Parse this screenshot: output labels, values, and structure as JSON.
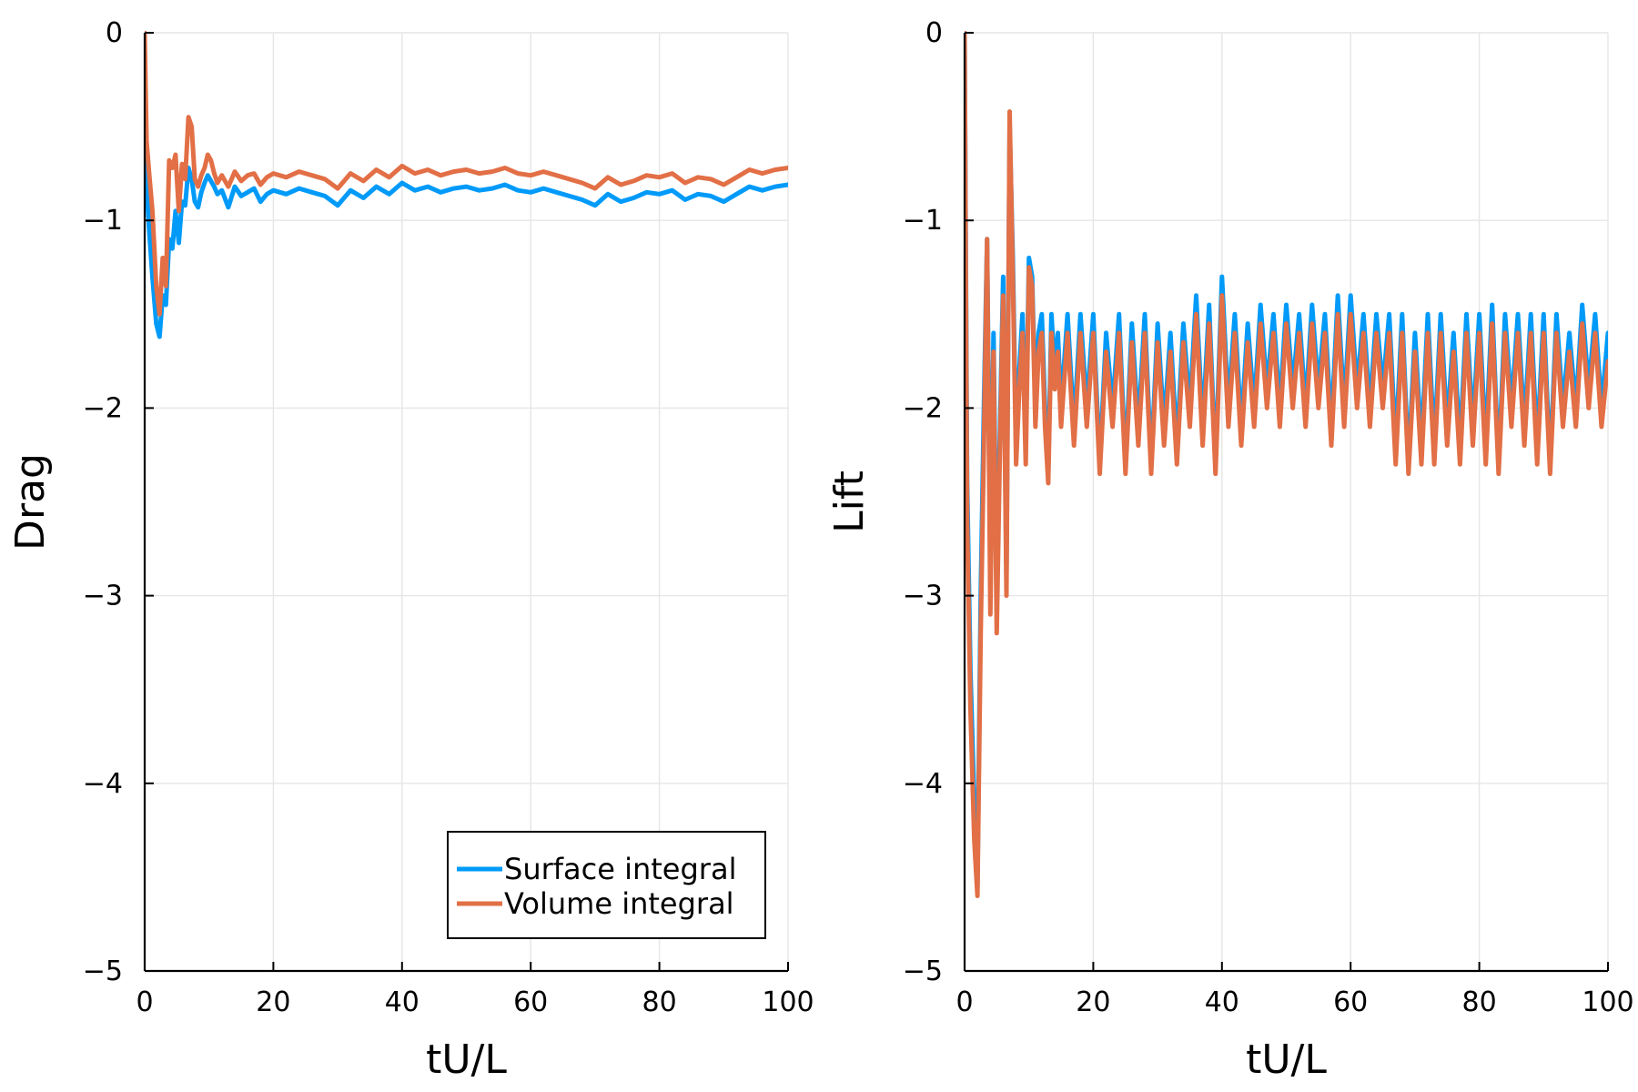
{
  "colors": {
    "surface": "#009AF9",
    "volume": "#E26F46",
    "grid": "#E6E6E6",
    "axis": "#000000"
  },
  "chart_data": [
    {
      "type": "line",
      "title": "",
      "xlabel": "tU/L",
      "ylabel": "Drag",
      "xlim": [
        0,
        100
      ],
      "ylim": [
        -5,
        0
      ],
      "xticks": [
        "0",
        "20",
        "40",
        "60",
        "80",
        "100"
      ],
      "yticks": [
        "0",
        "−1",
        "−2",
        "−3",
        "−4",
        "−5"
      ],
      "grid": true,
      "legend_position": "bottom-right",
      "legend": [
        "Surface integral",
        "Volume integral"
      ],
      "series": [
        {
          "name": "Surface integral",
          "color": "#009AF9",
          "x": [
            0,
            0.3,
            0.7,
            1.2,
            1.8,
            2.3,
            2.8,
            3.3,
            3.8,
            4.3,
            4.8,
            5.3,
            5.8,
            6.3,
            6.8,
            7.3,
            7.8,
            8.3,
            8.8,
            9.3,
            9.8,
            10.3,
            10.8,
            11.3,
            12,
            13,
            14,
            15,
            16,
            17,
            18,
            19,
            20,
            22,
            24,
            26,
            28,
            30,
            32,
            34,
            36,
            38,
            40,
            42,
            44,
            46,
            48,
            50,
            52,
            54,
            56,
            58,
            60,
            62,
            64,
            66,
            68,
            70,
            72,
            74,
            76,
            78,
            80,
            82,
            84,
            86,
            88,
            90,
            92,
            94,
            96,
            98,
            100
          ],
          "y": [
            -0.65,
            -0.82,
            -1.05,
            -1.3,
            -1.55,
            -1.62,
            -1.4,
            -1.45,
            -1.1,
            -1.15,
            -0.95,
            -1.12,
            -0.9,
            -0.92,
            -0.72,
            -0.78,
            -0.9,
            -0.93,
            -0.85,
            -0.8,
            -0.76,
            -0.79,
            -0.82,
            -0.86,
            -0.84,
            -0.93,
            -0.82,
            -0.87,
            -0.85,
            -0.83,
            -0.9,
            -0.86,
            -0.84,
            -0.86,
            -0.83,
            -0.85,
            -0.87,
            -0.92,
            -0.84,
            -0.88,
            -0.82,
            -0.86,
            -0.8,
            -0.84,
            -0.82,
            -0.85,
            -0.83,
            -0.82,
            -0.84,
            -0.83,
            -0.81,
            -0.84,
            -0.85,
            -0.83,
            -0.85,
            -0.87,
            -0.89,
            -0.92,
            -0.86,
            -0.9,
            -0.88,
            -0.85,
            -0.86,
            -0.84,
            -0.89,
            -0.86,
            -0.87,
            -0.9,
            -0.86,
            -0.82,
            -0.84,
            -0.82,
            -0.81
          ]
        },
        {
          "name": "Volume integral",
          "color": "#E26F46",
          "x": [
            0,
            0.3,
            0.7,
            1.2,
            1.8,
            2.3,
            2.8,
            3.3,
            3.8,
            4.3,
            4.8,
            5.3,
            5.8,
            6.3,
            6.8,
            7.3,
            7.8,
            8.3,
            8.8,
            9.3,
            9.8,
            10.3,
            10.8,
            11.3,
            12,
            13,
            14,
            15,
            16,
            17,
            18,
            19,
            20,
            22,
            24,
            26,
            28,
            30,
            32,
            34,
            36,
            38,
            40,
            42,
            44,
            46,
            48,
            50,
            52,
            54,
            56,
            58,
            60,
            62,
            64,
            66,
            68,
            70,
            72,
            74,
            76,
            78,
            80,
            82,
            84,
            86,
            88,
            90,
            92,
            94,
            96,
            98,
            100
          ],
          "y": [
            0,
            -0.58,
            -0.75,
            -0.95,
            -1.35,
            -1.5,
            -1.2,
            -1.35,
            -0.68,
            -0.72,
            -0.65,
            -0.95,
            -0.7,
            -0.78,
            -0.45,
            -0.5,
            -0.78,
            -0.82,
            -0.76,
            -0.72,
            -0.65,
            -0.68,
            -0.75,
            -0.8,
            -0.76,
            -0.82,
            -0.74,
            -0.79,
            -0.76,
            -0.75,
            -0.81,
            -0.77,
            -0.75,
            -0.77,
            -0.74,
            -0.76,
            -0.78,
            -0.83,
            -0.75,
            -0.79,
            -0.73,
            -0.77,
            -0.71,
            -0.75,
            -0.73,
            -0.76,
            -0.74,
            -0.73,
            -0.75,
            -0.74,
            -0.72,
            -0.75,
            -0.76,
            -0.74,
            -0.76,
            -0.78,
            -0.8,
            -0.83,
            -0.77,
            -0.81,
            -0.79,
            -0.76,
            -0.77,
            -0.75,
            -0.8,
            -0.77,
            -0.78,
            -0.81,
            -0.77,
            -0.73,
            -0.75,
            -0.73,
            -0.72
          ]
        }
      ]
    },
    {
      "type": "line",
      "title": "",
      "xlabel": "tU/L",
      "ylabel": "Lift",
      "xlim": [
        0,
        100
      ],
      "ylim": [
        -5,
        0
      ],
      "xticks": [
        "0",
        "20",
        "40",
        "60",
        "80",
        "100"
      ],
      "yticks": [
        "0",
        "−1",
        "−2",
        "−3",
        "−4",
        "−5"
      ],
      "grid": true,
      "series": [
        {
          "name": "Surface integral",
          "color": "#009AF9",
          "x": [
            0,
            0.4,
            0.9,
            1.5,
            2.0,
            2.5,
            3.0,
            3.5,
            4.0,
            4.5,
            5.0,
            5.5,
            6.0,
            6.5,
            7.0,
            7.5,
            8.0,
            8.5,
            9.0,
            9.5,
            10.0,
            10.5,
            11.0,
            11.5,
            12.0,
            12.5,
            13.0,
            13.5,
            14.0,
            14.5,
            15.0,
            16,
            17,
            18,
            19,
            20,
            21,
            22,
            23,
            24,
            25,
            26,
            27,
            28,
            29,
            30,
            31,
            32,
            33,
            34,
            35,
            36,
            37,
            38,
            39,
            40,
            41,
            42,
            43,
            44,
            45,
            46,
            47,
            48,
            49,
            50,
            51,
            52,
            53,
            54,
            55,
            56,
            57,
            58,
            59,
            60,
            61,
            62,
            63,
            64,
            65,
            66,
            67,
            68,
            69,
            70,
            71,
            72,
            73,
            74,
            75,
            76,
            77,
            78,
            79,
            80,
            81,
            82,
            83,
            84,
            85,
            86,
            87,
            88,
            89,
            90,
            91,
            92,
            93,
            94,
            95,
            96,
            97,
            98,
            99,
            100
          ],
          "y": [
            0,
            -2.4,
            -3.4,
            -4.1,
            -4.55,
            -3.0,
            -2.0,
            -1.1,
            -2.8,
            -1.6,
            -3.0,
            -2.1,
            -1.3,
            -2.9,
            -0.5,
            -1.2,
            -2.2,
            -1.8,
            -1.5,
            -2.2,
            -1.2,
            -1.3,
            -2.0,
            -1.6,
            -1.5,
            -2.0,
            -2.35,
            -1.5,
            -1.8,
            -1.6,
            -2.0,
            -1.5,
            -2.1,
            -1.5,
            -2.0,
            -1.5,
            -2.3,
            -1.6,
            -2.0,
            -1.5,
            -2.3,
            -1.55,
            -2.1,
            -1.5,
            -2.3,
            -1.55,
            -2.1,
            -1.6,
            -2.2,
            -1.55,
            -2.0,
            -1.4,
            -2.1,
            -1.45,
            -2.3,
            -1.3,
            -2.0,
            -1.5,
            -2.1,
            -1.55,
            -2.0,
            -1.45,
            -1.9,
            -1.5,
            -2.0,
            -1.45,
            -1.9,
            -1.5,
            -2.0,
            -1.45,
            -1.9,
            -1.5,
            -2.1,
            -1.4,
            -2.0,
            -1.4,
            -1.9,
            -1.5,
            -2.0,
            -1.5,
            -1.9,
            -1.5,
            -2.2,
            -1.5,
            -2.3,
            -1.6,
            -2.2,
            -1.5,
            -2.2,
            -1.5,
            -2.1,
            -1.6,
            -2.2,
            -1.5,
            -2.1,
            -1.5,
            -2.2,
            -1.45,
            -2.3,
            -1.5,
            -2.0,
            -1.5,
            -2.1,
            -1.5,
            -2.2,
            -1.5,
            -2.3,
            -1.5,
            -2.0,
            -1.6,
            -2.0,
            -1.45,
            -1.9,
            -1.5,
            -2.0,
            -1.6
          ]
        },
        {
          "name": "Volume integral",
          "color": "#E26F46",
          "x": [
            0,
            0.4,
            0.9,
            1.5,
            2.0,
            2.5,
            3.0,
            3.5,
            4.0,
            4.5,
            5.0,
            5.5,
            6.0,
            6.5,
            7.0,
            7.5,
            8.0,
            8.5,
            9.0,
            9.5,
            10.0,
            10.5,
            11.0,
            11.5,
            12.0,
            12.5,
            13.0,
            13.5,
            14.0,
            14.5,
            15.0,
            16,
            17,
            18,
            19,
            20,
            21,
            22,
            23,
            24,
            25,
            26,
            27,
            28,
            29,
            30,
            31,
            32,
            33,
            34,
            35,
            36,
            37,
            38,
            39,
            40,
            41,
            42,
            43,
            44,
            45,
            46,
            47,
            48,
            49,
            50,
            51,
            52,
            53,
            54,
            55,
            56,
            57,
            58,
            59,
            60,
            61,
            62,
            63,
            64,
            65,
            66,
            67,
            68,
            69,
            70,
            71,
            72,
            73,
            74,
            75,
            76,
            77,
            78,
            79,
            80,
            81,
            82,
            83,
            84,
            85,
            86,
            87,
            88,
            89,
            90,
            91,
            92,
            93,
            94,
            95,
            96,
            97,
            98,
            99,
            100
          ],
          "y": [
            0,
            -2.6,
            -3.6,
            -4.3,
            -4.6,
            -3.2,
            -2.2,
            -1.1,
            -3.1,
            -1.7,
            -3.2,
            -2.2,
            -1.4,
            -3.0,
            -0.42,
            -1.3,
            -2.3,
            -1.9,
            -1.6,
            -2.3,
            -1.25,
            -1.35,
            -2.1,
            -1.7,
            -1.6,
            -2.1,
            -2.4,
            -1.6,
            -1.9,
            -1.7,
            -2.1,
            -1.6,
            -2.2,
            -1.6,
            -2.1,
            -1.6,
            -2.35,
            -1.7,
            -2.1,
            -1.6,
            -2.35,
            -1.65,
            -2.2,
            -1.6,
            -2.35,
            -1.65,
            -2.2,
            -1.7,
            -2.3,
            -1.65,
            -2.1,
            -1.5,
            -2.2,
            -1.55,
            -2.35,
            -1.4,
            -2.1,
            -1.6,
            -2.2,
            -1.65,
            -2.1,
            -1.55,
            -2.0,
            -1.6,
            -2.1,
            -1.55,
            -2.0,
            -1.6,
            -2.1,
            -1.55,
            -2.0,
            -1.6,
            -2.2,
            -1.5,
            -2.1,
            -1.5,
            -2.0,
            -1.6,
            -2.1,
            -1.6,
            -2.0,
            -1.6,
            -2.3,
            -1.6,
            -2.35,
            -1.7,
            -2.3,
            -1.6,
            -2.3,
            -1.6,
            -2.2,
            -1.7,
            -2.3,
            -1.6,
            -2.2,
            -1.6,
            -2.3,
            -1.55,
            -2.35,
            -1.6,
            -2.1,
            -1.6,
            -2.2,
            -1.6,
            -2.3,
            -1.6,
            -2.35,
            -1.6,
            -2.1,
            -1.7,
            -2.1,
            -1.55,
            -2.0,
            -1.6,
            -2.1,
            -1.75
          ]
        }
      ]
    }
  ]
}
